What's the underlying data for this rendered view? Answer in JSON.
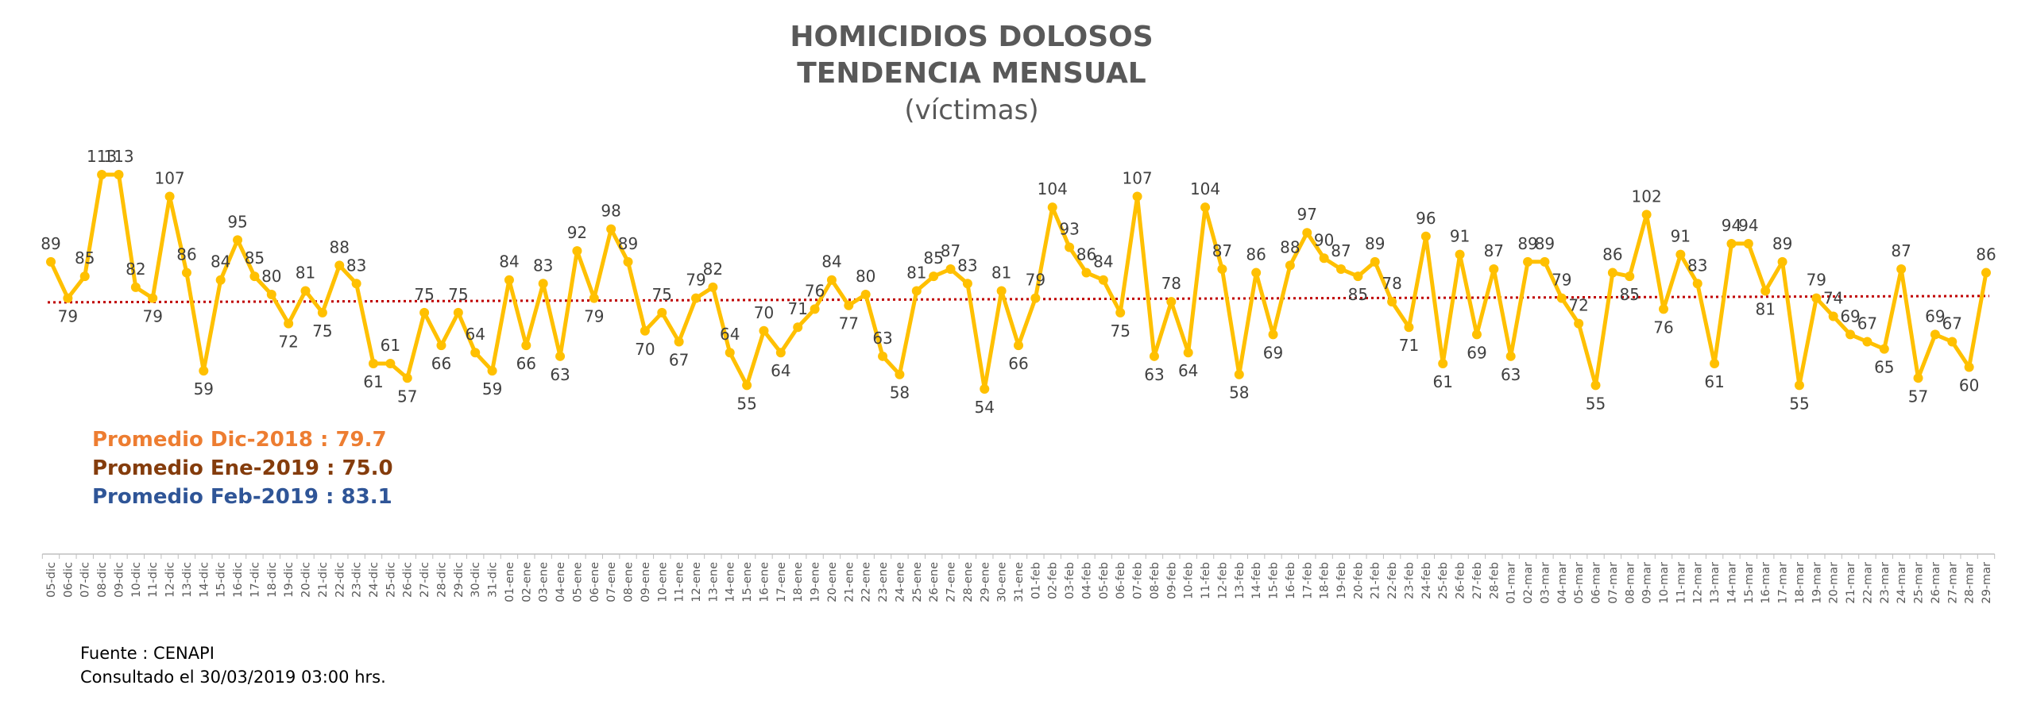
{
  "chart_data": {
    "type": "line",
    "title": "HOMICIDIOS DOLOSOS",
    "title2": "TENDENCIA MENSUAL",
    "subtitle": "(víctimas)",
    "line_color": "#FFC000",
    "avg_line_color": "#C00000",
    "x": [
      "05-dic",
      "06-dic",
      "07-dic",
      "08-dic",
      "09-dic",
      "10-dic",
      "11-dic",
      "12-dic",
      "13-dic",
      "14-dic",
      "15-dic",
      "16-dic",
      "17-dic",
      "18-dic",
      "19-dic",
      "20-dic",
      "21-dic",
      "22-dic",
      "23-dic",
      "24-dic",
      "25-dic",
      "26-dic",
      "27-dic",
      "28-dic",
      "29-dic",
      "30-dic",
      "31-dic",
      "01-ene",
      "02-ene",
      "03-ene",
      "04-ene",
      "05-ene",
      "06-ene",
      "07-ene",
      "08-ene",
      "09-ene",
      "10-ene",
      "11-ene",
      "12-ene",
      "13-ene",
      "14-ene",
      "15-ene",
      "16-ene",
      "17-ene",
      "18-ene",
      "19-ene",
      "20-ene",
      "21-ene",
      "22-ene",
      "23-ene",
      "24-ene",
      "25-ene",
      "26-ene",
      "27-ene",
      "28-ene",
      "29-ene",
      "30-ene",
      "31-ene",
      "01-feb",
      "02-feb",
      "03-feb",
      "04-feb",
      "05-feb",
      "06-feb",
      "07-feb",
      "08-feb",
      "09-feb",
      "10-feb",
      "11-feb",
      "12-feb",
      "13-feb",
      "14-feb",
      "15-feb",
      "16-feb",
      "17-feb",
      "18-feb",
      "19-feb",
      "20-feb",
      "21-feb",
      "22-feb",
      "23-feb",
      "24-feb",
      "25-feb",
      "26-feb",
      "27-feb",
      "28-feb",
      "01-mar",
      "02-mar",
      "03-mar",
      "04-mar",
      "05-mar",
      "06-mar",
      "07-mar",
      "08-mar",
      "09-mar",
      "10-mar",
      "11-mar",
      "12-mar",
      "13-mar",
      "14-mar",
      "15-mar",
      "16-mar",
      "17-mar",
      "18-mar",
      "19-mar",
      "20-mar",
      "21-mar",
      "22-mar",
      "23-mar",
      "24-mar",
      "25-mar",
      "26-mar",
      "27-mar",
      "28-mar",
      "29-mar"
    ],
    "values": [
      89,
      79,
      85,
      113,
      113,
      82,
      79,
      107,
      86,
      59,
      84,
      95,
      85,
      80,
      72,
      81,
      75,
      88,
      83,
      61,
      61,
      57,
      75,
      66,
      75,
      64,
      59,
      84,
      66,
      83,
      63,
      92,
      79,
      98,
      89,
      70,
      75,
      67,
      79,
      82,
      64,
      55,
      70,
      64,
      71,
      76,
      84,
      77,
      80,
      63,
      58,
      81,
      85,
      87,
      83,
      54,
      81,
      66,
      79,
      104,
      93,
      86,
      84,
      75,
      107,
      63,
      78,
      64,
      104,
      87,
      58,
      86,
      69,
      88,
      97,
      90,
      87,
      85,
      89,
      78,
      71,
      96,
      61,
      91,
      69,
      87,
      63,
      89,
      89,
      79,
      72,
      55,
      86,
      85,
      102,
      76,
      91,
      83,
      61,
      94,
      94,
      81,
      89,
      55,
      79,
      74,
      69,
      67,
      65,
      87,
      57,
      69,
      67,
      60,
      86
    ],
    "average_line_value": 78.5,
    "ylim": [
      40,
      125
    ],
    "grid": false,
    "averages": [
      {
        "label": "Promedio Dic-2018  : 79.7",
        "color": "#ED7D31"
      },
      {
        "label": "Promedio Ene-2019 : 75.0",
        "color": "#843C0C"
      },
      {
        "label": "Promedio Feb-2019 : 83.1",
        "color": "#2F5597"
      }
    ]
  },
  "source": {
    "line1": "Fuente : CENAPI",
    "line2": "Consultado el 30/03/2019  03:00 hrs."
  }
}
